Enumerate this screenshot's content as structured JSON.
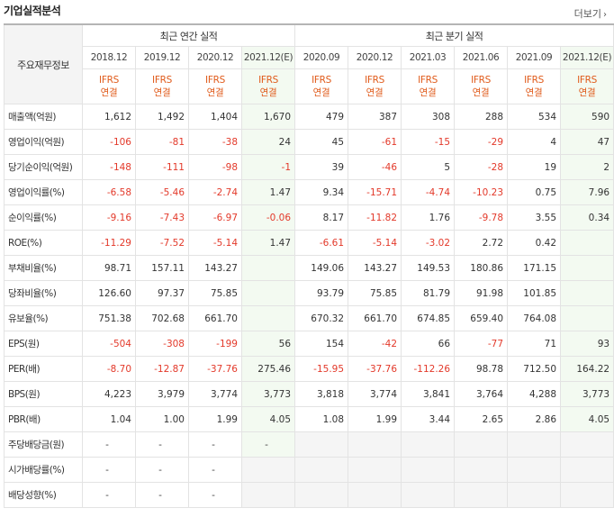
{
  "section_title": "기업실적분석",
  "more_label": "더보기",
  "more_icon": "chevron-right-icon",
  "row_header_label": "주요재무정보",
  "annual_group_label": "최근 연간 실적",
  "quarterly_group_label": "최근 분기 실적",
  "periods": [
    "2018.12",
    "2019.12",
    "2020.12",
    "2021.12(E)",
    "2020.09",
    "2020.12",
    "2021.03",
    "2021.06",
    "2021.09",
    "2021.12(E)"
  ],
  "standards": [
    {
      "line1": "IFRS",
      "line2": "연결"
    },
    {
      "line1": "IFRS",
      "line2": "연결"
    },
    {
      "line1": "IFRS",
      "line2": "연결"
    },
    {
      "line1": "IFRS",
      "line2": "연결"
    },
    {
      "line1": "IFRS",
      "line2": "연결"
    },
    {
      "line1": "IFRS",
      "line2": "연결"
    },
    {
      "line1": "IFRS",
      "line2": "연결"
    },
    {
      "line1": "IFRS",
      "line2": "연결"
    },
    {
      "line1": "IFRS",
      "line2": "연결"
    },
    {
      "line1": "IFRS",
      "line2": "연결"
    }
  ],
  "rows": [
    {
      "label": "매출액(억원)",
      "values": [
        "1,612",
        "1,492",
        "1,404",
        "1,670",
        "479",
        "387",
        "308",
        "288",
        "534",
        "590"
      ]
    },
    {
      "label": "영업이익(억원)",
      "values": [
        "-106",
        "-81",
        "-38",
        "24",
        "45",
        "-61",
        "-15",
        "-29",
        "4",
        "47"
      ]
    },
    {
      "label": "당기순이익(억원)",
      "values": [
        "-148",
        "-111",
        "-98",
        "-1",
        "39",
        "-46",
        "5",
        "-28",
        "19",
        "2"
      ]
    },
    {
      "label": "영업이익률(%)",
      "values": [
        "-6.58",
        "-5.46",
        "-2.74",
        "1.47",
        "9.34",
        "-15.71",
        "-4.74",
        "-10.23",
        "0.75",
        "7.96"
      ]
    },
    {
      "label": "순이익률(%)",
      "values": [
        "-9.16",
        "-7.43",
        "-6.97",
        "-0.06",
        "8.17",
        "-11.82",
        "1.76",
        "-9.78",
        "3.55",
        "0.34"
      ]
    },
    {
      "label": "ROE(%)",
      "values": [
        "-11.29",
        "-7.52",
        "-5.14",
        "1.47",
        "-6.61",
        "-5.14",
        "-3.02",
        "2.72",
        "0.42",
        ""
      ]
    },
    {
      "label": "부채비율(%)",
      "values": [
        "98.71",
        "157.11",
        "143.27",
        "",
        "149.06",
        "143.27",
        "149.53",
        "180.86",
        "171.15",
        ""
      ]
    },
    {
      "label": "당좌비율(%)",
      "values": [
        "126.60",
        "97.37",
        "75.85",
        "",
        "93.79",
        "75.85",
        "81.79",
        "91.98",
        "101.85",
        ""
      ]
    },
    {
      "label": "유보율(%)",
      "values": [
        "751.38",
        "702.68",
        "661.70",
        "",
        "670.32",
        "661.70",
        "674.85",
        "659.40",
        "764.08",
        ""
      ]
    },
    {
      "label": "EPS(원)",
      "values": [
        "-504",
        "-308",
        "-199",
        "56",
        "154",
        "-42",
        "66",
        "-77",
        "71",
        "93"
      ]
    },
    {
      "label": "PER(배)",
      "values": [
        "-8.70",
        "-12.87",
        "-37.76",
        "275.46",
        "-15.95",
        "-37.76",
        "-112.26",
        "98.78",
        "712.50",
        "164.22"
      ]
    },
    {
      "label": "BPS(원)",
      "values": [
        "4,223",
        "3,979",
        "3,774",
        "3,773",
        "3,818",
        "3,774",
        "3,841",
        "3,764",
        "4,288",
        "3,773"
      ]
    },
    {
      "label": "PBR(배)",
      "values": [
        "1.04",
        "1.00",
        "1.99",
        "4.05",
        "1.08",
        "1.99",
        "3.44",
        "2.65",
        "2.86",
        "4.05"
      ]
    },
    {
      "label": "주당배당금(원)",
      "values": [
        "-",
        "-",
        "-",
        "-",
        "",
        "",
        "",
        "",
        "",
        ""
      ]
    },
    {
      "label": "시가배당률(%)",
      "values": [
        "-",
        "-",
        "-",
        "",
        "",
        "",
        "",
        "",
        "",
        ""
      ]
    },
    {
      "label": "배당성향(%)",
      "values": [
        "-",
        "-",
        "-",
        "",
        "",
        "",
        "",
        "",
        "",
        ""
      ]
    }
  ],
  "colors": {
    "negative": "#e3392a",
    "standard": "#e05b1b",
    "estimate_bg": "#f3faf1",
    "empty_bg": "#f5f5f5",
    "row_header_bg": "#f4f4f4"
  }
}
